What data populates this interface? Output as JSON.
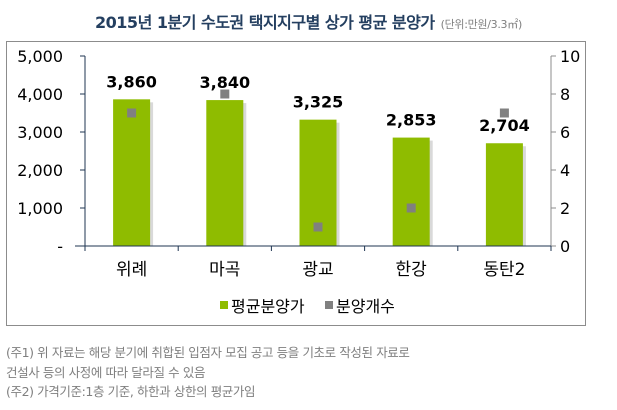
{
  "title": {
    "main": "2015년 1분기 수도권 택지지구별 상가 평균 분양가",
    "unit": "(단위:만원/3.3㎡)"
  },
  "colors": {
    "bar": "#8fbc00",
    "marker": "#808080",
    "title": "#243f60",
    "axis": "#1f3552",
    "right_axis": "#8c8c8c",
    "note": "#7f7f7f"
  },
  "chart_data": {
    "type": "bar",
    "title": "2015년 1분기 수도권 택지지구별 상가 평균 분양가",
    "subtitle": "(단위:만원/3.3㎡)",
    "categories": [
      "위례",
      "마곡",
      "광교",
      "한강",
      "동탄2"
    ],
    "series": [
      {
        "name": "평균분양가",
        "type": "bar",
        "axis": "left",
        "color": "#8fbc00",
        "values": [
          3860,
          3840,
          3325,
          2853,
          2704
        ],
        "labels": [
          "3,860",
          "3,840",
          "3,325",
          "2,853",
          "2,704"
        ]
      },
      {
        "name": "분양개수",
        "type": "scatter",
        "axis": "right",
        "color": "#808080",
        "values": [
          7,
          8,
          1,
          2,
          7
        ]
      }
    ],
    "left_axis": {
      "ylim": [
        0,
        5000
      ],
      "ticks": [
        "-",
        "1,000",
        "2,000",
        "3,000",
        "4,000",
        "5,000"
      ]
    },
    "right_axis": {
      "ylim": [
        0,
        10
      ],
      "ticks": [
        "0",
        "2",
        "4",
        "6",
        "8",
        "10"
      ]
    },
    "xlabel": "",
    "ylabel": "",
    "grid": false,
    "legend_position": "bottom"
  },
  "legend": [
    {
      "label": "평균분양가",
      "color": "#8fbc00"
    },
    {
      "label": "분양개수",
      "color": "#808080"
    }
  ],
  "notes": [
    "(주1) 위 자료는 해당 분기에 취합된 입점자 모집 공고 등을 기초로 작성된 자료로",
    "건설사 등의 사정에 따라 달라질 수 있음",
    "(주2) 가격기준:1층 기준, 하한과 상한의 평균가임"
  ]
}
